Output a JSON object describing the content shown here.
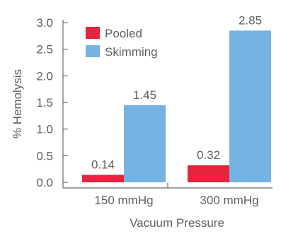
{
  "chart_data": {
    "type": "bar",
    "title": "",
    "xlabel": "Vacuum Pressure",
    "ylabel": "% Hemolysis",
    "ylim": [
      0,
      3.0
    ],
    "yticks": [
      "0.0",
      "0.5",
      "1.0",
      "1.5",
      "2.0",
      "2.5",
      "3.0"
    ],
    "categories": [
      "150 mmHg",
      "300 mmHg"
    ],
    "series": [
      {
        "name": "Pooled",
        "color": "#e8233f",
        "values": [
          0.14,
          0.32
        ],
        "labels": [
          "0.14",
          "0.32"
        ]
      },
      {
        "name": "Skimming",
        "color": "#77b3e2",
        "values": [
          1.45,
          2.85
        ],
        "labels": [
          "1.45",
          "2.85"
        ]
      }
    ],
    "legend_position": "top-left",
    "grid": false
  }
}
